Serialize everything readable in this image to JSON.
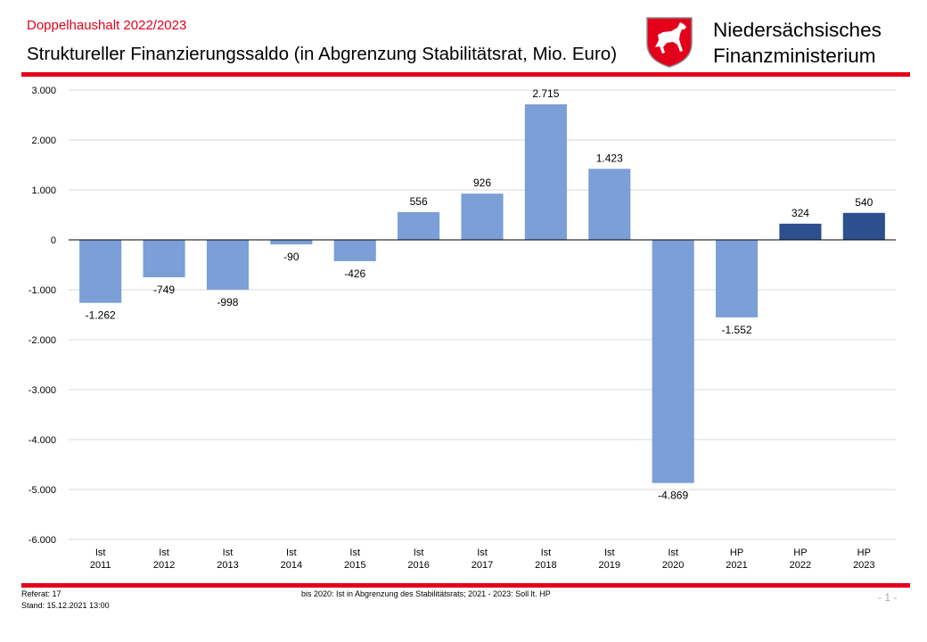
{
  "header": {
    "supertitle": "Doppelhaushalt 2022/2023",
    "title": "Struktureller  Finanzierungssaldo  (in Abgrenzung  Stabilitätsrat, Mio. Euro)",
    "ministry_line1": "Niedersächsisches",
    "ministry_line2": "Finanzministerium"
  },
  "footer": {
    "referat": "Referat: 17",
    "stand": "Stand: 15.12.2021 13:00",
    "note": "bis 2020: Ist in Abgrenzung des Stabilitätsrats; 2021 - 2023: Soll lt. HP",
    "page": "- 1 -"
  },
  "colors": {
    "accent_red": "#e3001b",
    "bar_ist": "#7b9fd6",
    "bar_hp_highlight": "#2e4f8e",
    "grid": "#d9d9d9"
  },
  "icons": {
    "crest": "lower-saxony-horse-crest-icon"
  },
  "chart_data": {
    "type": "bar",
    "categories": [
      [
        "Ist",
        "2011"
      ],
      [
        "Ist",
        "2012"
      ],
      [
        "Ist",
        "2013"
      ],
      [
        "Ist",
        "2014"
      ],
      [
        "Ist",
        "2015"
      ],
      [
        "Ist",
        "2016"
      ],
      [
        "Ist",
        "2017"
      ],
      [
        "Ist",
        "2018"
      ],
      [
        "Ist",
        "2019"
      ],
      [
        "Ist",
        "2020"
      ],
      [
        "HP",
        "2021"
      ],
      [
        "HP",
        "2022"
      ],
      [
        "HP",
        "2023"
      ]
    ],
    "values": [
      -1262,
      -749,
      -998,
      -90,
      -426,
      556,
      926,
      2715,
      1423,
      -4869,
      -1552,
      324,
      540
    ],
    "value_labels": [
      "-1.262",
      "-749",
      "-998",
      "-90",
      "-426",
      "556",
      "926",
      "2.715",
      "1.423",
      "-4.869",
      "-1.552",
      "324",
      "540"
    ],
    "bar_colors": [
      "#7b9fd6",
      "#7b9fd6",
      "#7b9fd6",
      "#7b9fd6",
      "#7b9fd6",
      "#7b9fd6",
      "#7b9fd6",
      "#7b9fd6",
      "#7b9fd6",
      "#7b9fd6",
      "#7b9fd6",
      "#2e4f8e",
      "#2e4f8e"
    ],
    "ylim": [
      -6000,
      3000
    ],
    "yticks": [
      3000,
      2000,
      1000,
      0,
      -1000,
      -2000,
      -3000,
      -4000,
      -5000,
      -6000
    ],
    "ytick_labels": [
      "3.000",
      "2.000",
      "1.000",
      "0",
      "-1.000",
      "-2.000",
      "-3.000",
      "-4.000",
      "-5.000",
      "-6.000"
    ],
    "grid": true,
    "legend": "none"
  }
}
